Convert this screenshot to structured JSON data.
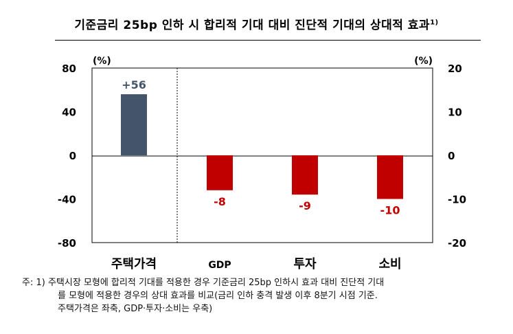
{
  "title": "기준금리 25bp 인하 시 합리적 기대 대비 진단적 기대의 상대적 효과",
  "title_sup": "1)",
  "chart_data": {
    "type": "bar",
    "categories": [
      "주택가격",
      "GDP",
      "투자",
      "소비"
    ],
    "series": [
      {
        "values": [
          56,
          null,
          null,
          null
        ],
        "axis": "left",
        "color": "#44546a"
      },
      {
        "values": [
          null,
          -8,
          -9,
          -10
        ],
        "axis": "right",
        "color": "#c00000"
      }
    ],
    "data_labels": [
      "+56",
      "-8",
      "-9",
      "-10"
    ],
    "left_unit": "(%)",
    "right_unit": "(%)",
    "left_ylim": [
      -80,
      80
    ],
    "right_ylim": [
      -20,
      20
    ],
    "left_ticks": [
      "80",
      "40",
      "0",
      "-40",
      "-80"
    ],
    "right_ticks": [
      "20",
      "10",
      "0",
      "-10",
      "-20"
    ],
    "grid": false,
    "divider_after_category": 0
  },
  "note": {
    "line1": "주: 1) 주택시장 모형에 합리적 기대를 적용한 경우 기준금리 25bp 인하시 효과 대비 진단적 기대",
    "line2": "를 모형에 적용한 경우의 상대 효과를 비교(금리 인하 충격 발생 이후 8분기 시점 기준.",
    "line3": "주택가격은 좌축, GDP·투자·소비는 우축)"
  }
}
